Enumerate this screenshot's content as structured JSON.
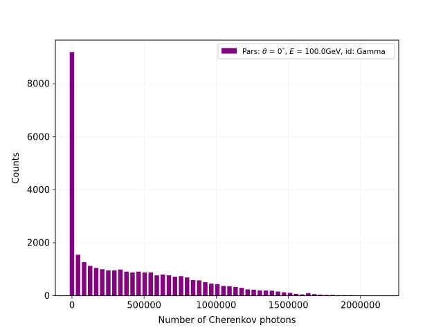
{
  "chart_data": {
    "type": "bar",
    "xlabel": "Number of Cherenkov photons",
    "ylabel": "Counts",
    "xlim": [
      -115000,
      2265000
    ],
    "ylim": [
      0,
      9650
    ],
    "xticks": [
      0,
      500000,
      1000000,
      1500000,
      2000000
    ],
    "yticks": [
      0,
      2000,
      4000,
      6000,
      8000
    ],
    "grid": true,
    "legend_position": "top-right",
    "bar_width": 31000,
    "bar_color": "#800080",
    "series": [
      {
        "name": "Pars: θ = 0°, E = 100.0GeV, id: Gamma",
        "legend_prefix": "Pars: ",
        "legend_theta": "θ",
        "legend_eq1": " = 0",
        "legend_deg": "°",
        "legend_comma1": ", ",
        "legend_E": "E",
        "legend_eq2": " = 100.0GeV, id: Gamma",
        "x": [
          0,
          42000,
          84000,
          126000,
          168000,
          210000,
          252000,
          294000,
          336000,
          378000,
          420000,
          462000,
          504000,
          546000,
          588000,
          630000,
          672000,
          714000,
          756000,
          798000,
          840000,
          882000,
          924000,
          966000,
          1008000,
          1050000,
          1092000,
          1134000,
          1176000,
          1218000,
          1260000,
          1302000,
          1344000,
          1386000,
          1428000,
          1470000,
          1512000,
          1554000,
          1596000,
          1638000,
          1680000,
          1722000,
          1764000,
          1806000,
          1848000,
          1890000,
          1932000,
          1974000,
          2016000
        ],
        "values": [
          9200,
          1550,
          1270,
          1130,
          1050,
          1000,
          960,
          960,
          990,
          910,
          880,
          910,
          880,
          880,
          770,
          800,
          770,
          720,
          740,
          690,
          590,
          580,
          510,
          460,
          440,
          370,
          360,
          330,
          300,
          240,
          230,
          200,
          200,
          190,
          160,
          130,
          110,
          70,
          50,
          100,
          60,
          40,
          30,
          30,
          20,
          20,
          20,
          10,
          10
        ]
      }
    ]
  }
}
